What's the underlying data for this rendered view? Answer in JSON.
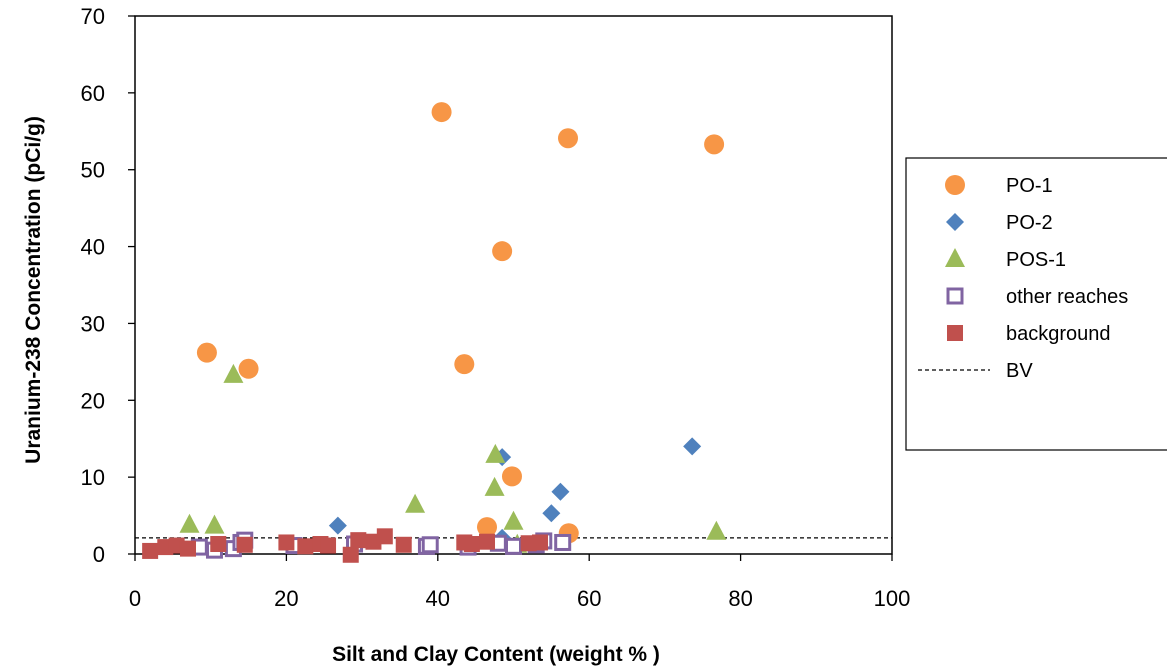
{
  "chart_data": {
    "type": "scatter",
    "title": "",
    "xlabel": "Silt and Clay Content (weight % )",
    "ylabel": "Uranium-238 Concentration (pCi/g)",
    "xlim": [
      0,
      100
    ],
    "ylim": [
      0,
      70
    ],
    "x_ticks": [
      "0",
      "20",
      "40",
      "60",
      "80",
      "100"
    ],
    "y_ticks": [
      "0",
      "10",
      "20",
      "30",
      "40",
      "50",
      "60",
      "70"
    ],
    "grid": false,
    "legend_position": "right",
    "series": [
      {
        "name": "PO-1",
        "marker": "circle",
        "color": "#F79646",
        "points": [
          [
            9.5,
            26.2
          ],
          [
            15,
            24.1
          ],
          [
            40.5,
            57.5
          ],
          [
            43.5,
            24.7
          ],
          [
            46.5,
            3.5
          ],
          [
            48.5,
            39.4
          ],
          [
            49.8,
            10.1
          ],
          [
            57.2,
            54.1
          ],
          [
            57.3,
            2.7
          ],
          [
            76.5,
            53.3
          ]
        ]
      },
      {
        "name": "PO-2",
        "marker": "diamond",
        "color": "#4F81BD",
        "points": [
          [
            26.8,
            3.7
          ],
          [
            48.5,
            12.6
          ],
          [
            48.5,
            2.1
          ],
          [
            55,
            5.3
          ],
          [
            56.2,
            8.1
          ],
          [
            73.6,
            14.0
          ]
        ]
      },
      {
        "name": "POS-1",
        "marker": "triangle",
        "color": "#9BBB59",
        "points": [
          [
            7.2,
            3.8
          ],
          [
            10.5,
            3.7
          ],
          [
            13,
            23.3
          ],
          [
            37,
            6.4
          ],
          [
            47.5,
            8.6
          ],
          [
            47.6,
            12.9
          ],
          [
            50,
            4.2
          ],
          [
            50.5,
            1.2
          ],
          [
            76.8,
            2.9
          ]
        ]
      },
      {
        "name": "other reaches",
        "marker": "square-open",
        "color": "#8064A2",
        "points": [
          [
            8.5,
            0.9
          ],
          [
            10.5,
            0.5
          ],
          [
            13,
            0.7
          ],
          [
            14,
            1.5
          ],
          [
            14.5,
            1.8
          ],
          [
            21,
            1.1
          ],
          [
            29,
            1.3
          ],
          [
            38.5,
            1.0
          ],
          [
            39,
            1.2
          ],
          [
            44,
            0.9
          ],
          [
            48,
            1.4
          ],
          [
            50,
            1.0
          ],
          [
            53,
            1.2
          ],
          [
            54,
            1.7
          ],
          [
            56.5,
            1.5
          ]
        ]
      },
      {
        "name": "background",
        "marker": "square",
        "color": "#C0504D",
        "points": [
          [
            2,
            0.4
          ],
          [
            4,
            0.9
          ],
          [
            5.5,
            1.1
          ],
          [
            7,
            0.7
          ],
          [
            11,
            1.3
          ],
          [
            14.5,
            1.2
          ],
          [
            20,
            1.5
          ],
          [
            22.5,
            1.0
          ],
          [
            24.5,
            1.3
          ],
          [
            25.5,
            1.1
          ],
          [
            28.5,
            -0.1
          ],
          [
            29.5,
            1.8
          ],
          [
            31.5,
            1.6
          ],
          [
            33,
            2.3
          ],
          [
            35.5,
            1.2
          ],
          [
            43.5,
            1.5
          ],
          [
            44.5,
            1.3
          ],
          [
            46.5,
            1.6
          ],
          [
            52,
            1.4
          ],
          [
            53.5,
            1.5
          ]
        ]
      }
    ],
    "reference_lines": [
      {
        "name": "BV",
        "y": 2.1,
        "style": "dashed",
        "color": "#000000"
      }
    ]
  }
}
